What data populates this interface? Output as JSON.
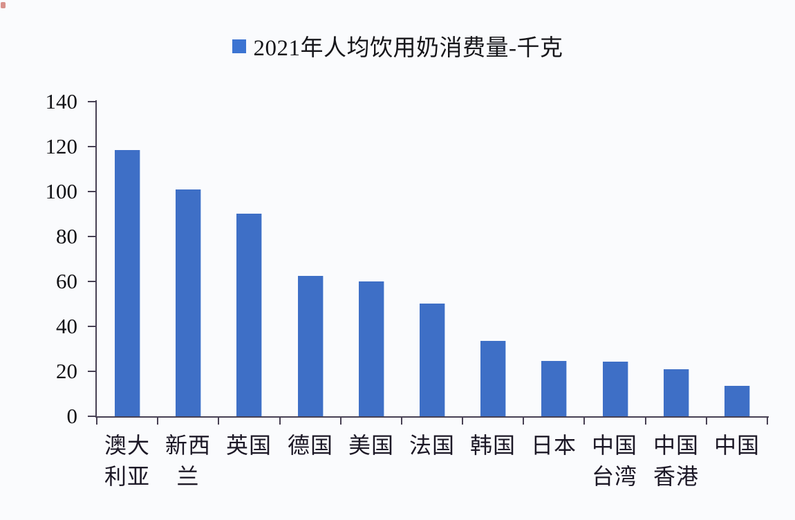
{
  "legend": {
    "label": "2021年人均饮用奶消费量-千克",
    "marker_color": "#3c74d2"
  },
  "chart_data": {
    "type": "bar",
    "title": "2021年人均饮用奶消费量-千克",
    "unit": "千克",
    "categories": [
      "澳大利亚",
      "新西兰",
      "英国",
      "德国",
      "美国",
      "法国",
      "韩国",
      "日本",
      "中国台湾",
      "中国香港",
      "中国"
    ],
    "category_label_lines": [
      [
        "澳大",
        "利亚"
      ],
      [
        "新西",
        "兰"
      ],
      [
        "英国"
      ],
      [
        "德国"
      ],
      [
        "美国"
      ],
      [
        "法国"
      ],
      [
        "韩国"
      ],
      [
        "日本"
      ],
      [
        "中国",
        "台湾"
      ],
      [
        "中国",
        "香港"
      ],
      [
        "中国"
      ]
    ],
    "values": [
      118.5,
      101,
      90,
      62.5,
      60,
      50.3,
      33.5,
      24.7,
      24.4,
      21,
      13.5
    ],
    "ylim": [
      0,
      140
    ],
    "yticks": [
      0,
      20,
      40,
      60,
      80,
      100,
      120,
      140
    ],
    "grid": false,
    "legend_position": "top-center",
    "bar_color": "#3e6fc6",
    "axis_color": "#474053"
  }
}
